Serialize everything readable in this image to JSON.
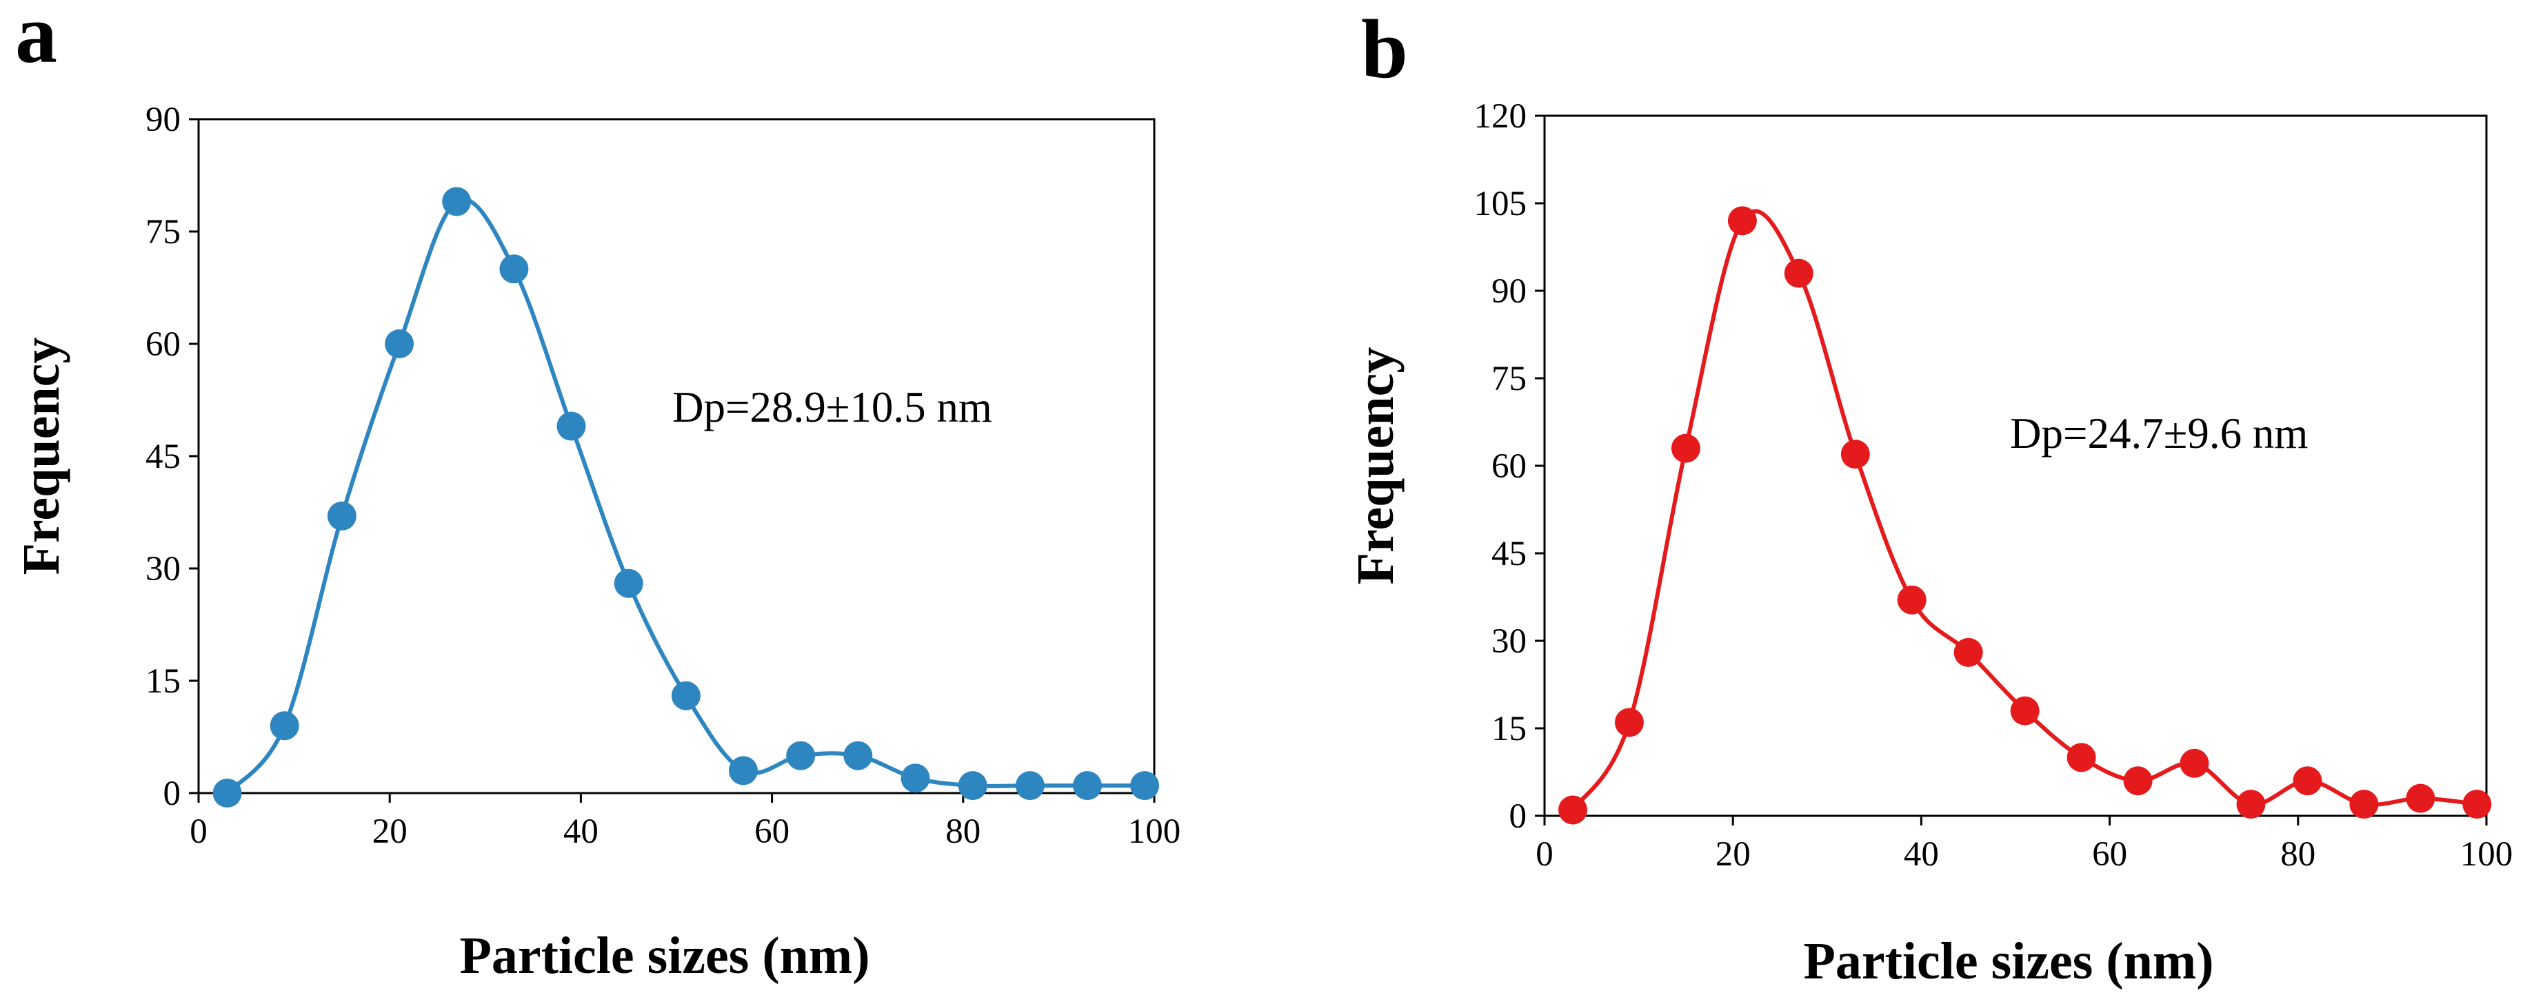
{
  "chart_data": [
    {
      "panel_label": "a",
      "type": "line",
      "smooth": true,
      "marker": "circle",
      "color": "#2E86C1",
      "x": [
        3,
        9,
        15,
        21,
        27,
        33,
        39,
        45,
        51,
        57,
        63,
        69,
        75,
        81,
        87,
        93,
        99
      ],
      "y": [
        0,
        9,
        37,
        60,
        79,
        70,
        49,
        28,
        13,
        3,
        5,
        5,
        2,
        1,
        1,
        1,
        1
      ],
      "xlabel": "Particle sizes (nm)",
      "ylabel": "Frequency",
      "xlim": [
        0,
        100
      ],
      "ylim": [
        0,
        90
      ],
      "xticks": [
        0,
        20,
        40,
        60,
        80,
        100
      ],
      "yticks": [
        0,
        15,
        30,
        45,
        60,
        75,
        90
      ],
      "grid": false,
      "annotation": "Dp=28.9±10.5 nm"
    },
    {
      "panel_label": "b",
      "type": "line",
      "smooth": true,
      "marker": "circle",
      "color": "#E41A1C",
      "x": [
        3,
        9,
        15,
        21,
        27,
        33,
        39,
        45,
        51,
        57,
        63,
        69,
        75,
        81,
        87,
        93,
        99
      ],
      "y": [
        1,
        16,
        63,
        102,
        93,
        62,
        37,
        28,
        18,
        10,
        6,
        9,
        2,
        6,
        2,
        3,
        2
      ],
      "xlabel": "Particle sizes (nm)",
      "ylabel": "Frequency",
      "xlim": [
        0,
        100
      ],
      "ylim": [
        0,
        120
      ],
      "xticks": [
        0,
        20,
        40,
        60,
        80,
        100
      ],
      "yticks": [
        0,
        15,
        30,
        45,
        60,
        75,
        90,
        105,
        120
      ],
      "grid": false,
      "annotation": "Dp=24.7±9.6 nm"
    }
  ]
}
